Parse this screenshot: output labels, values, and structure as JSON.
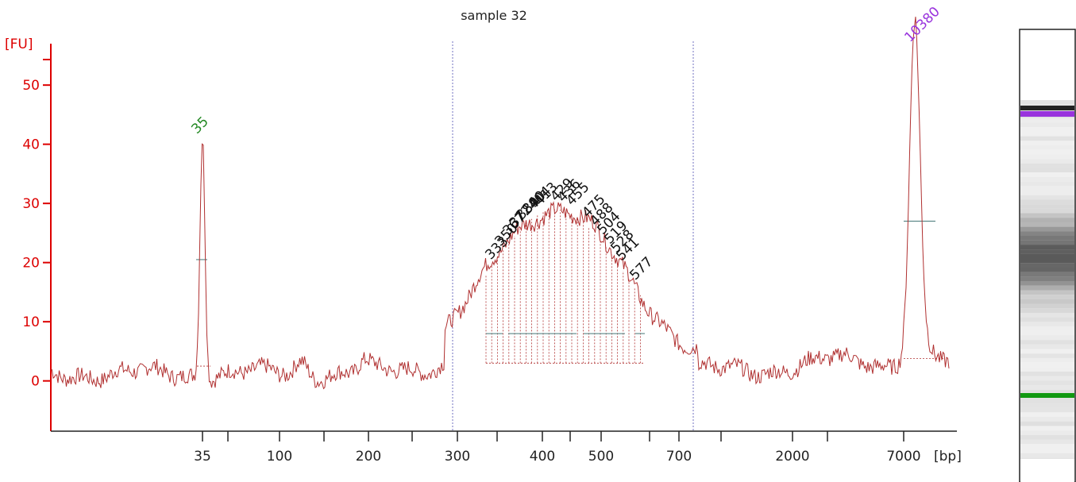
{
  "chart_data": {
    "type": "line",
    "title": "sample 32",
    "ylabel": "[FU]",
    "xlabel": "[bp]",
    "ylim": [
      -8.5,
      57
    ],
    "yticks": [
      0,
      10,
      20,
      30,
      40,
      50
    ],
    "xticks": [
      "35",
      "100",
      "200",
      "300",
      "400",
      "500",
      "700",
      "2000",
      "7000"
    ],
    "region_bounds_bp": [
      300,
      700
    ],
    "trace_points": [
      {
        "x": "35",
        "y": 41
      },
      {
        "x": "300",
        "y": 0
      },
      {
        "x": "429",
        "y": 29
      },
      {
        "x": "700",
        "y": 0.5
      },
      {
        "x": "10380",
        "y": 56.5
      }
    ],
    "markers": [
      {
        "label": "35",
        "y": 41
      },
      {
        "label": "10380",
        "y": 56.5
      }
    ],
    "fragment_labels": [
      "333",
      "350",
      "367",
      "372",
      "384",
      "390",
      "404",
      "413",
      "429",
      "436",
      "455",
      "475",
      "488",
      "504",
      "519",
      "528",
      "541",
      "577"
    ],
    "colors": {
      "trace": "#b03030",
      "axis": "#dd0000",
      "lower_marker": "#228822",
      "upper_marker": "#9933dd",
      "region_line": "#8888cc",
      "baseline": "#447777"
    }
  },
  "gel": {
    "bands": [
      {
        "name": "upper-marker",
        "color": "#9933dd"
      },
      {
        "name": "lower-marker",
        "color": "#119911"
      }
    ]
  }
}
